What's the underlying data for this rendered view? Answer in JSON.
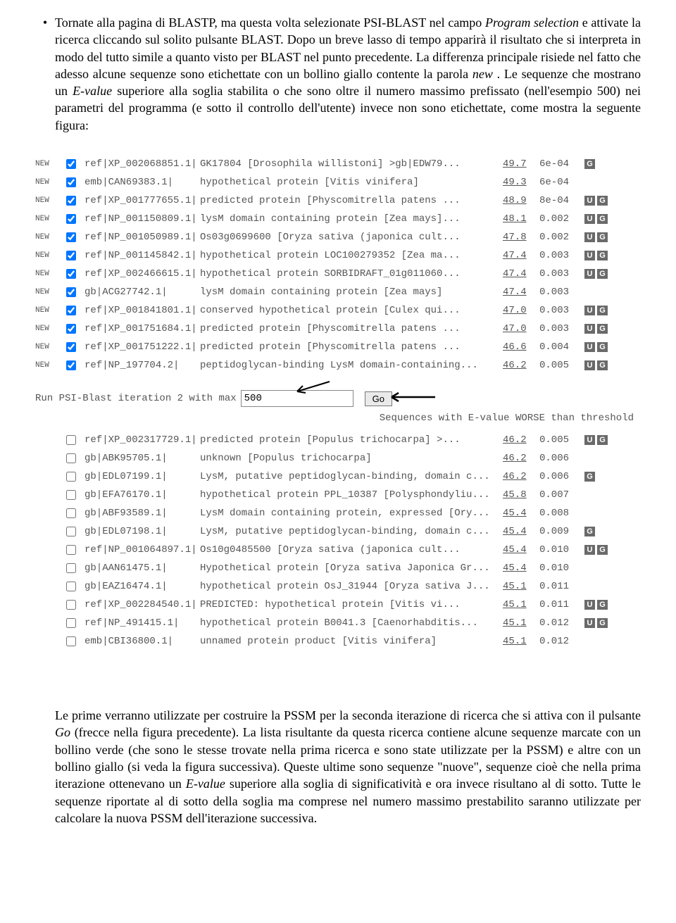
{
  "bullet_glyph": "•",
  "text_top": "Tornate alla pagina di BLASTP, ma questa volta selezionate PSI-BLAST nel campo ",
  "text_top_i1": "Program selection",
  "text_top_2": " e attivate la ricerca cliccando sul solito pulsante BLAST. Dopo un breve lasso di tempo apparirà il risultato che si interpreta in modo del tutto simile a quanto visto per BLAST nel punto precedente. La differenza principale risiede nel fatto che adesso alcune sequenze sono etichettate con un bollino giallo contente la parola ",
  "text_top_i2": "new",
  "text_top_3": ". Le sequenze che mostrano un ",
  "text_top_i3": "E-value",
  "text_top_4": " superiore alla soglia stabilita o che sono oltre il numero massimo prefissato (nell'esempio 500) nei parametri del programma (e sotto il controllo dell'utente) invece non sono etichettate, come mostra la seguente figura:",
  "run_label": "Run PSI-Blast iteration 2 with max",
  "run_value": "500",
  "go_label": "Go",
  "worse_label": "Sequences with E-value WORSE than threshold",
  "rows_above": [
    {
      "new": "NEW",
      "chk": true,
      "acc": "ref|XP_002068851.1|",
      "desc": "GK17804 [Drosophila willistoni] >gb|EDW79...",
      "score": "49.7",
      "eval": "6e-04",
      "badges": [
        "G"
      ]
    },
    {
      "new": "NEW",
      "chk": true,
      "acc": "emb|CAN69383.1|",
      "desc": "hypothetical protein [Vitis vinifera]",
      "score": "49.3",
      "eval": "6e-04",
      "badges": []
    },
    {
      "new": "NEW",
      "chk": true,
      "acc": "ref|XP_001777655.1|",
      "desc": "predicted protein [Physcomitrella patens ...",
      "score": "48.9",
      "eval": "8e-04",
      "badges": [
        "U",
        "G"
      ]
    },
    {
      "new": "NEW",
      "chk": true,
      "acc": "ref|NP_001150809.1|",
      "desc": "lysM domain containing protein [Zea mays]...",
      "score": "48.1",
      "eval": "0.002",
      "badges": [
        "U",
        "G"
      ]
    },
    {
      "new": "NEW",
      "chk": true,
      "acc": "ref|NP_001050989.1|",
      "desc": "Os03g0699600 [Oryza sativa (japonica cult...",
      "score": "47.8",
      "eval": "0.002",
      "badges": [
        "U",
        "G"
      ]
    },
    {
      "new": "NEW",
      "chk": true,
      "acc": "ref|NP_001145842.1|",
      "desc": "hypothetical protein LOC100279352 [Zea ma...",
      "score": "47.4",
      "eval": "0.003",
      "badges": [
        "U",
        "G"
      ]
    },
    {
      "new": "NEW",
      "chk": true,
      "acc": "ref|XP_002466615.1|",
      "desc": "hypothetical protein SORBIDRAFT_01g011060...",
      "score": "47.4",
      "eval": "0.003",
      "badges": [
        "U",
        "G"
      ]
    },
    {
      "new": "NEW",
      "chk": true,
      "acc": "gb|ACG27742.1|",
      "desc": "lysM domain containing protein [Zea mays]",
      "score": "47.4",
      "eval": "0.003",
      "badges": []
    },
    {
      "new": "NEW",
      "chk": true,
      "acc": "ref|XP_001841801.1|",
      "desc": "conserved hypothetical protein [Culex qui...",
      "score": "47.0",
      "eval": "0.003",
      "badges": [
        "U",
        "G"
      ]
    },
    {
      "new": "NEW",
      "chk": true,
      "acc": "ref|XP_001751684.1|",
      "desc": "predicted protein [Physcomitrella patens ...",
      "score": "47.0",
      "eval": "0.003",
      "badges": [
        "U",
        "G"
      ]
    },
    {
      "new": "NEW",
      "chk": true,
      "acc": "ref|XP_001751222.1|",
      "desc": "predicted protein [Physcomitrella patens ...",
      "score": "46.6",
      "eval": "0.004",
      "badges": [
        "U",
        "G"
      ]
    },
    {
      "new": "NEW",
      "chk": true,
      "acc": "ref|NP_197704.2|",
      "desc": "peptidoglycan-binding LysM domain-containing...",
      "score": "46.2",
      "eval": "0.005",
      "badges": [
        "U",
        "G"
      ]
    }
  ],
  "rows_below": [
    {
      "new": "",
      "chk": false,
      "acc": "ref|XP_002317729.1|",
      "desc": "predicted protein [Populus trichocarpa] >...",
      "score": "46.2",
      "eval": "0.005",
      "badges": [
        "U",
        "G"
      ]
    },
    {
      "new": "",
      "chk": false,
      "acc": "gb|ABK95705.1|",
      "desc": "unknown [Populus trichocarpa]",
      "score": "46.2",
      "eval": "0.006",
      "badges": []
    },
    {
      "new": "",
      "chk": false,
      "acc": "gb|EDL07199.1|",
      "desc": "LysM, putative peptidoglycan-binding, domain c...",
      "score": "46.2",
      "eval": "0.006",
      "badges": [
        "G"
      ]
    },
    {
      "new": "",
      "chk": false,
      "acc": "gb|EFA76170.1|",
      "desc": "hypothetical protein PPL_10387 [Polysphondyliu...",
      "score": "45.8",
      "eval": "0.007",
      "badges": []
    },
    {
      "new": "",
      "chk": false,
      "acc": "gb|ABF93589.1|",
      "desc": "LysM domain containing protein, expressed [Ory...",
      "score": "45.4",
      "eval": "0.008",
      "badges": []
    },
    {
      "new": "",
      "chk": false,
      "acc": "gb|EDL07198.1|",
      "desc": "LysM, putative peptidoglycan-binding, domain c...",
      "score": "45.4",
      "eval": "0.009",
      "badges": [
        "G"
      ]
    },
    {
      "new": "",
      "chk": false,
      "acc": "ref|NP_001064897.1|",
      "desc": "Os10g0485500 [Oryza sativa (japonica cult...",
      "score": "45.4",
      "eval": "0.010",
      "badges": [
        "U",
        "G"
      ]
    },
    {
      "new": "",
      "chk": false,
      "acc": "gb|AAN61475.1|",
      "desc": "Hypothetical protein [Oryza sativa Japonica Gr...",
      "score": "45.4",
      "eval": "0.010",
      "badges": []
    },
    {
      "new": "",
      "chk": false,
      "acc": "gb|EAZ16474.1|",
      "desc": "hypothetical protein OsJ_31944 [Oryza sativa J...",
      "score": "45.1",
      "eval": "0.011",
      "badges": []
    },
    {
      "new": "",
      "chk": false,
      "acc": "ref|XP_002284540.1|",
      "desc": "PREDICTED: hypothetical protein [Vitis vi...",
      "score": "45.1",
      "eval": "0.011",
      "badges": [
        "U",
        "G"
      ]
    },
    {
      "new": "",
      "chk": false,
      "acc": "ref|NP_491415.1|",
      "desc": "hypothetical protein B0041.3 [Caenorhabditis...",
      "score": "45.1",
      "eval": "0.012",
      "badges": [
        "U",
        "G"
      ]
    },
    {
      "new": "",
      "chk": false,
      "acc": "emb|CBI36800.1|",
      "desc": "unnamed protein product [Vitis vinifera]",
      "score": "45.1",
      "eval": "0.012",
      "badges": []
    }
  ],
  "text_bot_1": "Le prime verranno utilizzate per costruire la PSSM per la seconda iterazione di ricerca che si attiva con il pulsante ",
  "text_bot_i1": "Go",
  "text_bot_2": " (frecce nella figura precedente). La lista risultante da questa ricerca contiene alcune sequenze marcate con un bollino verde (che sono le stesse trovate nella prima ricerca e sono state utilizzate per la PSSM) e altre con un bollino giallo (si veda la figura successiva). Queste ultime sono sequenze \"nuove\", sequenze cioè che nella prima iterazione ottenevano un ",
  "text_bot_i2": "E-value",
  "text_bot_3": " superiore alla soglia di significatività e ora invece risultano al di sotto. Tutte le sequenze riportate al di sotto della soglia ma comprese nel numero massimo prestabilito saranno utilizzate per calcolare la nuova PSSM dell'iterazione successiva."
}
